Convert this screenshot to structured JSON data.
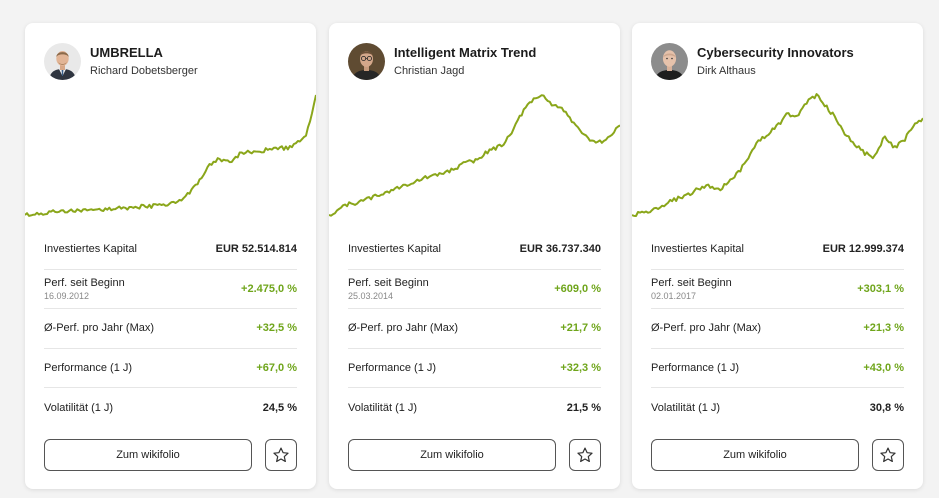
{
  "accent_color": "#8aa61a",
  "positive_color": "#6fa51b",
  "cards": [
    {
      "title": "UMBRELLA",
      "author": "Richard Dobetsberger",
      "avatar_icon": "portrait-man-suit-tie",
      "rows": [
        {
          "label": "Investiertes Kapital",
          "sub": "",
          "value": "EUR 52.514.814",
          "positive": false
        },
        {
          "label": "Perf. seit Beginn",
          "sub": "16.09.2012",
          "value": "+2.475,0 %",
          "positive": true
        },
        {
          "label": "Ø-Perf. pro Jahr (Max)",
          "sub": "",
          "value": "+32,5 %",
          "positive": true
        },
        {
          "label": "Performance (1 J)",
          "sub": "",
          "value": "+67,0 %",
          "positive": true
        },
        {
          "label": "Volatilität (1 J)",
          "sub": "",
          "value": "24,5 %",
          "positive": false
        }
      ],
      "button_label": "Zum wikifolio",
      "star_icon": "star-outline-icon",
      "chart_data": {
        "type": "line",
        "series": [
          {
            "name": "UMBRELLA",
            "values": [
              1.0,
              1.02,
              1.05,
              1.08,
              1.1,
              1.12,
              1.1,
              1.13,
              1.15,
              1.17,
              1.2,
              1.18,
              1.22,
              1.24,
              1.28,
              1.3,
              1.4,
              1.6,
              1.9,
              2.3,
              2.5,
              2.4,
              2.6,
              2.7,
              2.65,
              2.75,
              2.8,
              2.78,
              2.9,
              3.1,
              4.2
            ]
          }
        ],
        "xlabel": "",
        "ylabel": "",
        "grid": false
      }
    },
    {
      "title": "Intelligent Matrix Trend",
      "author": "Christian Jagd",
      "avatar_icon": "portrait-man-glasses",
      "rows": [
        {
          "label": "Investiertes Kapital",
          "sub": "",
          "value": "EUR 36.737.340",
          "positive": false
        },
        {
          "label": "Perf. seit Beginn",
          "sub": "25.03.2014",
          "value": "+609,0 %",
          "positive": true
        },
        {
          "label": "Ø-Perf. pro Jahr (Max)",
          "sub": "",
          "value": "+21,7 %",
          "positive": true
        },
        {
          "label": "Performance (1 J)",
          "sub": "",
          "value": "+32,3 %",
          "positive": true
        },
        {
          "label": "Volatilität (1 J)",
          "sub": "",
          "value": "21,5 %",
          "positive": false
        }
      ],
      "button_label": "Zum wikifolio",
      "star_icon": "star-outline-icon",
      "chart_data": {
        "type": "line",
        "series": [
          {
            "name": "Intelligent Matrix Trend",
            "values": [
              1.0,
              1.15,
              1.3,
              1.35,
              1.45,
              1.55,
              1.65,
              1.75,
              1.85,
              1.95,
              2.05,
              2.1,
              2.2,
              2.3,
              2.45,
              2.5,
              2.7,
              2.85,
              3.0,
              3.4,
              3.9,
              4.2,
              4.35,
              4.1,
              4.0,
              3.6,
              3.3,
              3.1,
              3.05,
              3.2,
              3.5
            ]
          }
        ],
        "xlabel": "",
        "ylabel": "",
        "grid": false
      }
    },
    {
      "title": "Cybersecurity Innovators",
      "author": "Dirk Althaus",
      "avatar_icon": "portrait-man-bald",
      "rows": [
        {
          "label": "Investiertes Kapital",
          "sub": "",
          "value": "EUR 12.999.374",
          "positive": false
        },
        {
          "label": "Perf. seit Beginn",
          "sub": "02.01.2017",
          "value": "+303,1 %",
          "positive": true
        },
        {
          "label": "Ø-Perf. pro Jahr (Max)",
          "sub": "",
          "value": "+21,3 %",
          "positive": true
        },
        {
          "label": "Performance (1 J)",
          "sub": "",
          "value": "+43,0 %",
          "positive": true
        },
        {
          "label": "Volatilität (1 J)",
          "sub": "",
          "value": "30,8 %",
          "positive": false
        }
      ],
      "button_label": "Zum wikifolio",
      "star_icon": "star-outline-icon",
      "chart_data": {
        "type": "line",
        "series": [
          {
            "name": "Cybersecurity Innovators",
            "values": [
              1.0,
              1.05,
              1.1,
              1.2,
              1.35,
              1.45,
              1.55,
              1.7,
              1.75,
              1.65,
              1.85,
              2.1,
              2.5,
              2.9,
              3.1,
              3.3,
              3.6,
              3.55,
              3.9,
              4.1,
              3.8,
              3.5,
              3.1,
              2.8,
              2.6,
              2.5,
              3.0,
              2.75,
              2.9,
              3.3,
              3.5
            ]
          }
        ],
        "xlabel": "",
        "ylabel": "",
        "grid": false
      }
    }
  ]
}
